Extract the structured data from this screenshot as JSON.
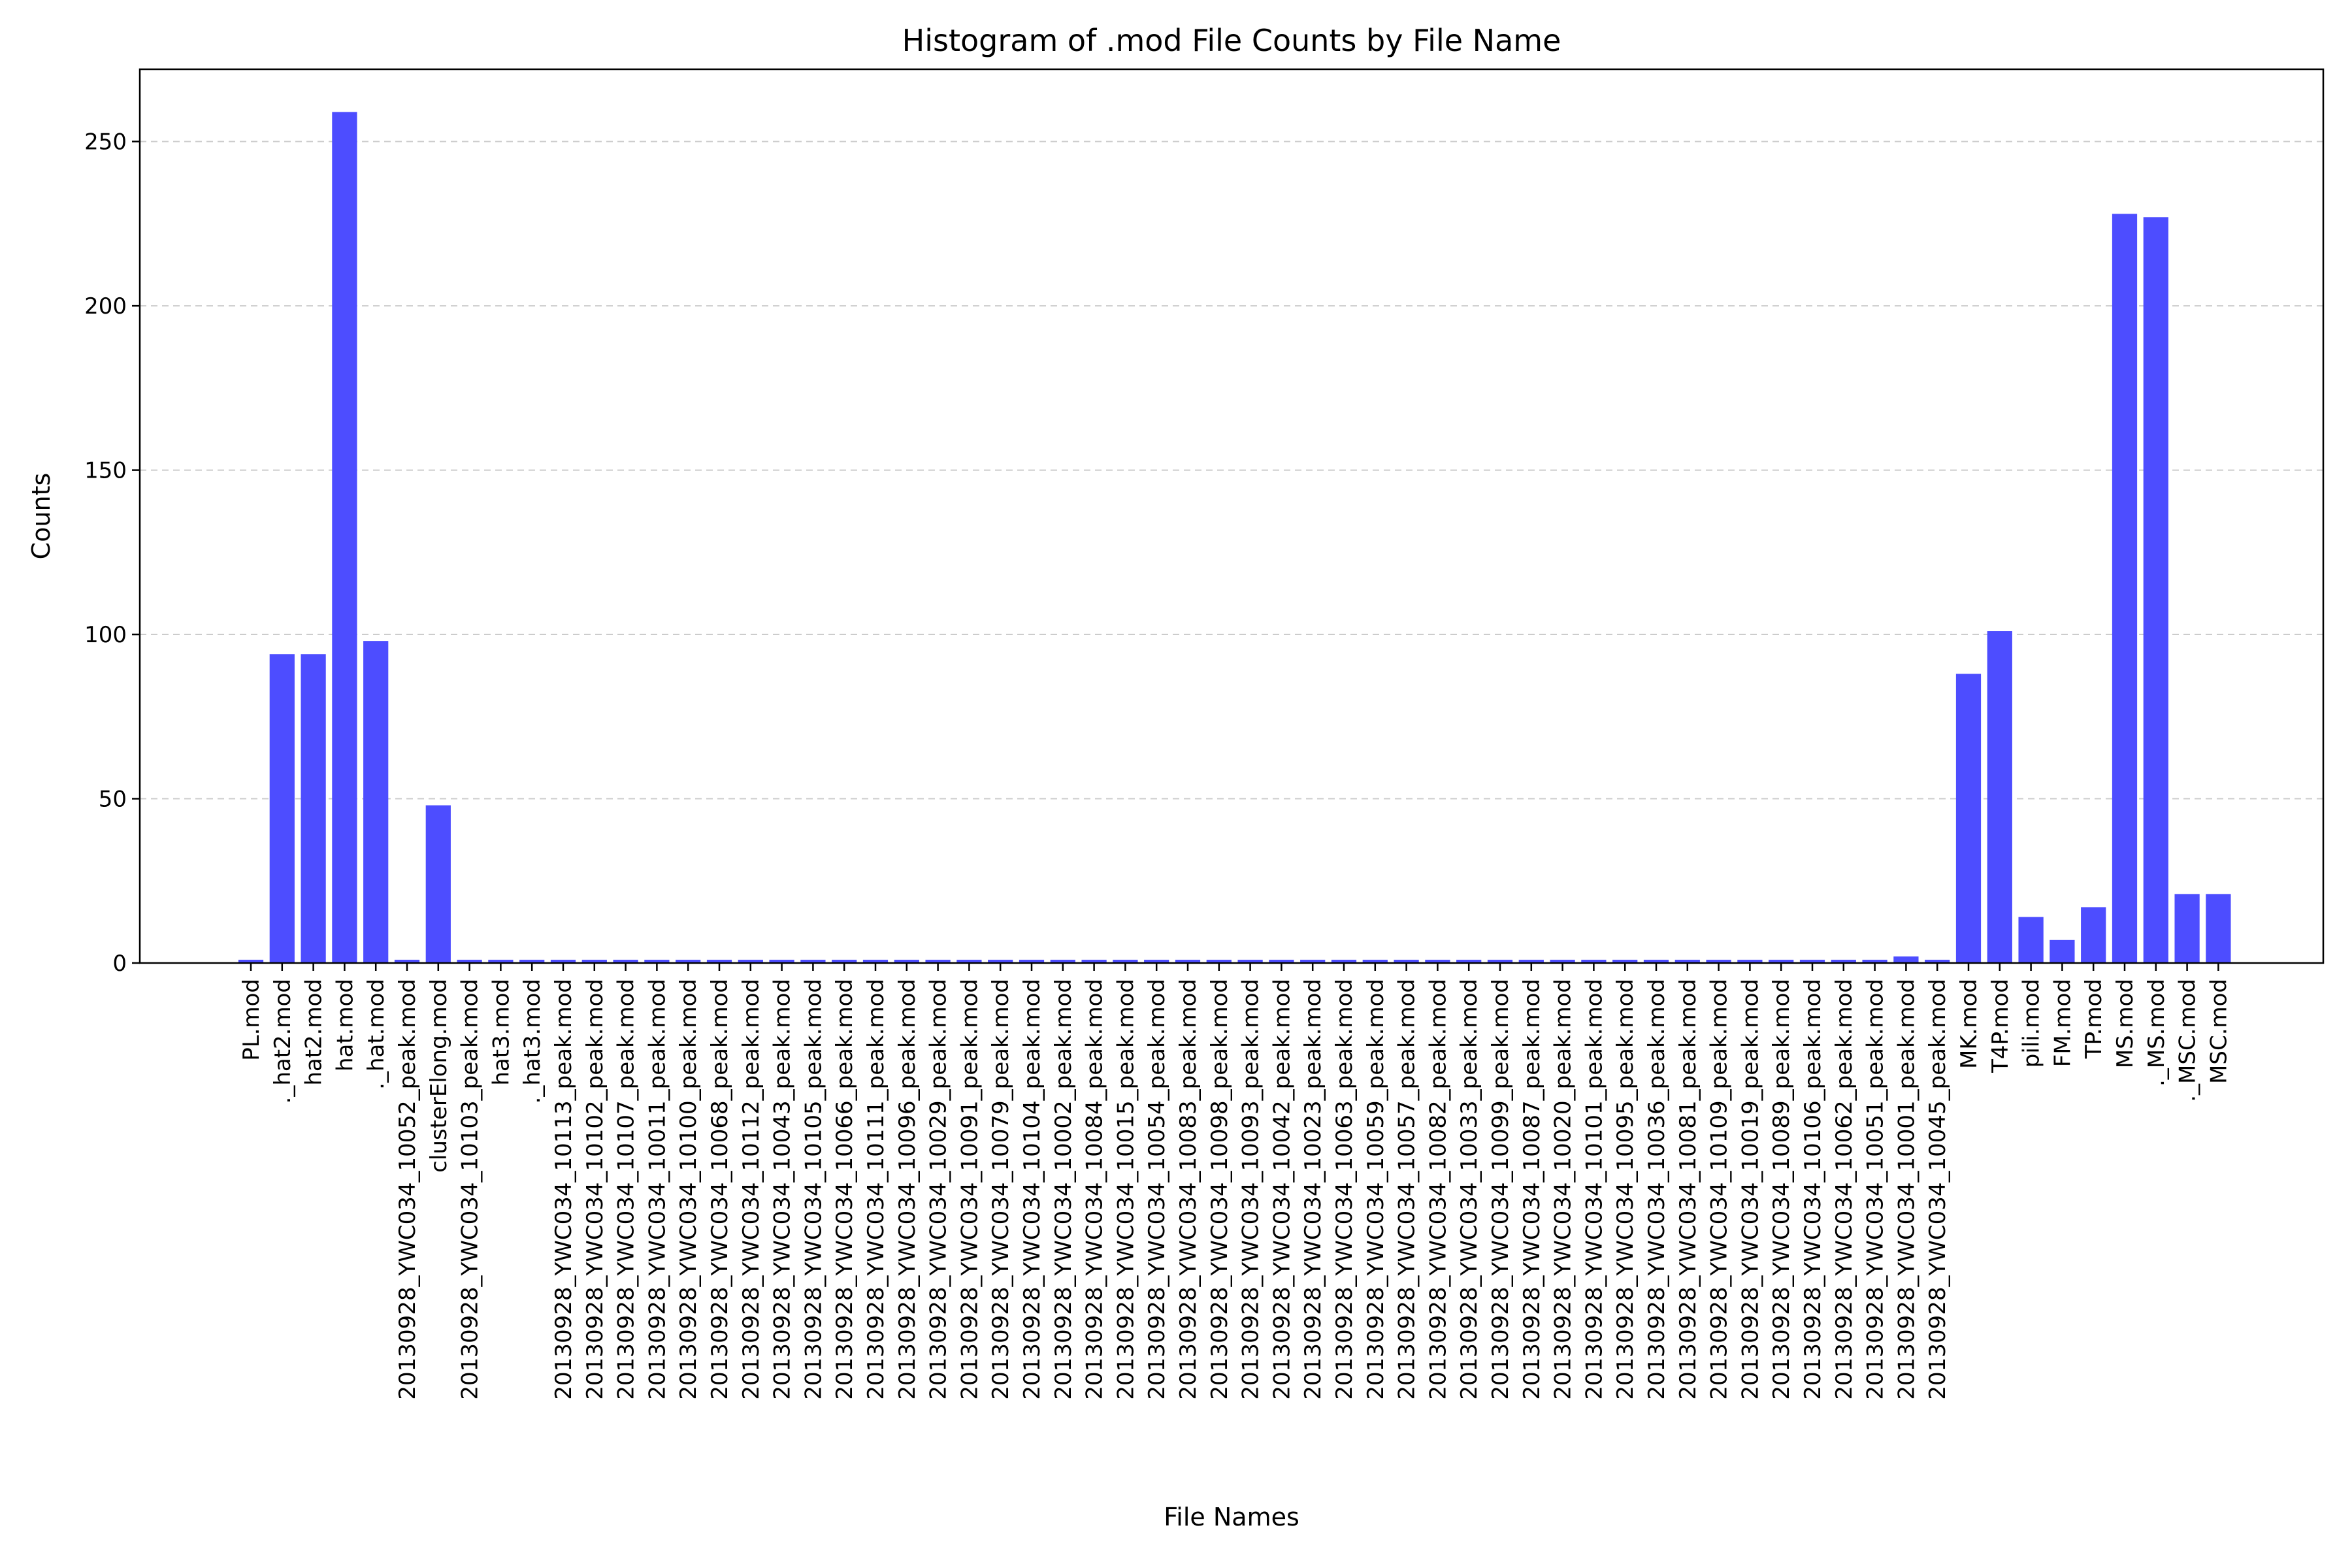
{
  "chart_data": {
    "type": "bar",
    "title": "Histogram of .mod File Counts by File Name",
    "xlabel": "File Names",
    "ylabel": "Counts",
    "ylim": [
      0,
      272
    ],
    "yticks": [
      0,
      50,
      100,
      150,
      200,
      250
    ],
    "grid": "y-dashed",
    "bar_color": "#4d4dff",
    "categories": [
      "PL.mod",
      "._hat2.mod",
      "hat2.mod",
      "hat.mod",
      "._hat.mod",
      "20130928_YWC034_10052_peak.mod",
      "clusterElong.mod",
      "20130928_YWC034_10103_peak.mod",
      "hat3.mod",
      "._hat3.mod",
      "20130928_YWC034_10113_peak.mod",
      "20130928_YWC034_10102_peak.mod",
      "20130928_YWC034_10107_peak.mod",
      "20130928_YWC034_10011_peak.mod",
      "20130928_YWC034_10100_peak.mod",
      "20130928_YWC034_10068_peak.mod",
      "20130928_YWC034_10112_peak.mod",
      "20130928_YWC034_10043_peak.mod",
      "20130928_YWC034_10105_peak.mod",
      "20130928_YWC034_10066_peak.mod",
      "20130928_YWC034_10111_peak.mod",
      "20130928_YWC034_10096_peak.mod",
      "20130928_YWC034_10029_peak.mod",
      "20130928_YWC034_10091_peak.mod",
      "20130928_YWC034_10079_peak.mod",
      "20130928_YWC034_10104_peak.mod",
      "20130928_YWC034_10002_peak.mod",
      "20130928_YWC034_10084_peak.mod",
      "20130928_YWC034_10015_peak.mod",
      "20130928_YWC034_10054_peak.mod",
      "20130928_YWC034_10083_peak.mod",
      "20130928_YWC034_10098_peak.mod",
      "20130928_YWC034_10093_peak.mod",
      "20130928_YWC034_10042_peak.mod",
      "20130928_YWC034_10023_peak.mod",
      "20130928_YWC034_10063_peak.mod",
      "20130928_YWC034_10059_peak.mod",
      "20130928_YWC034_10057_peak.mod",
      "20130928_YWC034_10082_peak.mod",
      "20130928_YWC034_10033_peak.mod",
      "20130928_YWC034_10099_peak.mod",
      "20130928_YWC034_10087_peak.mod",
      "20130928_YWC034_10020_peak.mod",
      "20130928_YWC034_10101_peak.mod",
      "20130928_YWC034_10095_peak.mod",
      "20130928_YWC034_10036_peak.mod",
      "20130928_YWC034_10081_peak.mod",
      "20130928_YWC034_10109_peak.mod",
      "20130928_YWC034_10019_peak.mod",
      "20130928_YWC034_10089_peak.mod",
      "20130928_YWC034_10106_peak.mod",
      "20130928_YWC034_10062_peak.mod",
      "20130928_YWC034_10051_peak.mod",
      "20130928_YWC034_10001_peak.mod",
      "20130928_YWC034_10045_peak.mod",
      "MK.mod",
      "T4P.mod",
      "pili.mod",
      "FM.mod",
      "TP.mod",
      "MS.mod",
      "._MS.mod",
      "._MSC.mod",
      "MSC.mod"
    ],
    "values": [
      1,
      94,
      94,
      259,
      98,
      1,
      48,
      1,
      1,
      1,
      1,
      1,
      1,
      1,
      1,
      1,
      1,
      1,
      1,
      1,
      1,
      1,
      1,
      1,
      1,
      1,
      1,
      1,
      1,
      1,
      1,
      1,
      1,
      1,
      1,
      1,
      1,
      1,
      1,
      1,
      1,
      1,
      1,
      1,
      1,
      1,
      1,
      1,
      1,
      1,
      1,
      1,
      1,
      2,
      1,
      88,
      101,
      14,
      7,
      17,
      228,
      227,
      21,
      21
    ]
  }
}
